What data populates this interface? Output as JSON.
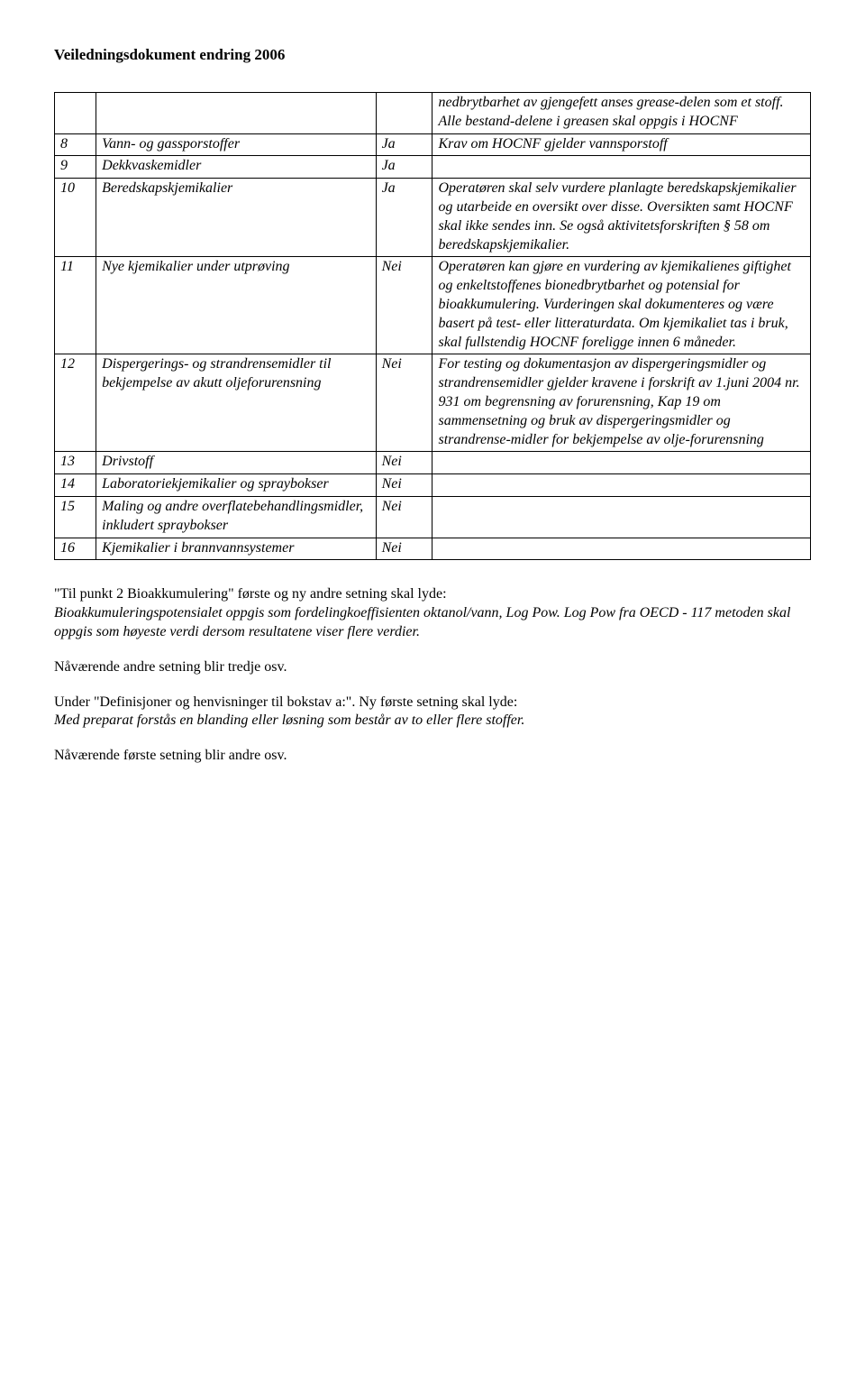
{
  "header": "Veiledningsdokument endring 2006",
  "table": {
    "rows": [
      {
        "n": "",
        "c2": "",
        "c3": "",
        "c4": "nedbrytbarhet av gjengefett anses grease-delen som et stoff. Alle bestand-delene i greasen skal oppgis i HOCNF"
      },
      {
        "n": "8",
        "c2": "Vann- og gassporstoffer",
        "c3": "Ja",
        "c4": "Krav om HOCNF gjelder vannsporstoff"
      },
      {
        "n": "9",
        "c2": "Dekkvaskemidler",
        "c3": "Ja",
        "c4": ""
      },
      {
        "n": "10",
        "c2": "Beredskapskjemikalier",
        "c3": "Ja",
        "c4": "Operatøren skal selv vurdere planlagte beredskapskjemikalier og utarbeide en oversikt over disse. Oversikten samt HOCNF skal ikke sendes inn. Se også aktivitetsforskriften § 58 om beredskapskjemikalier."
      },
      {
        "n": "11",
        "c2": "Nye kjemikalier under utprøving",
        "c3": "Nei",
        "c4": "Operatøren kan gjøre en vurdering av kjemikalienes giftighet og enkeltstoffenes bionedbrytbarhet og potensial for bioakkumulering. Vurderingen skal dokumenteres og være basert på test- eller litteraturdata. Om kjemikaliet tas i bruk, skal fullstendig HOCNF foreligge innen 6 måneder."
      },
      {
        "n": "12",
        "c2": "Dispergerings- og strandrensemidler til bekjempelse av akutt oljeforurensning",
        "c3": "Nei",
        "c4": "For testing og dokumentasjon av dispergeringsmidler og strandrensemidler gjelder kravene i forskrift av 1.juni 2004 nr. 931 om begrensning av forurensning, Kap 19 om sammensetning og bruk av dispergeringsmidler og strandrense-midler for bekjempelse av olje-forurensning"
      },
      {
        "n": "13",
        "c2": "Drivstoff",
        "c3": "Nei",
        "c4": ""
      },
      {
        "n": "14",
        "c2": "Laboratoriekjemikalier og spraybokser",
        "c3": "Nei",
        "c4": ""
      },
      {
        "n": "15",
        "c2": "Maling og andre overflatebehandlingsmidler, inkludert spraybokser",
        "c3": "Nei",
        "c4": ""
      },
      {
        "n": "16",
        "c2": "Kjemikalier i brannvannsystemer",
        "c3": "Nei",
        "c4": ""
      }
    ]
  },
  "body": {
    "p1_lead": "\"Til punkt 2 Bioakkumulering\" første og ny andre setning skal lyde:",
    "p1_italic": "Bioakkumuleringspotensialet oppgis som fordelingkoeffisienten oktanol/vann, Log Pow. Log Pow fra OECD - 117 metoden skal oppgis som høyeste verdi dersom resultatene viser flere verdier.",
    "p2": "Nåværende andre setning blir tredje osv.",
    "p3_lead": "Under \"Definisjoner og henvisninger til bokstav a:\". Ny første setning skal lyde:",
    "p3_italic": "Med preparat forstås en blanding eller løsning som består av to eller flere stoffer.",
    "p4": "Nåværende første setning blir andre osv."
  }
}
